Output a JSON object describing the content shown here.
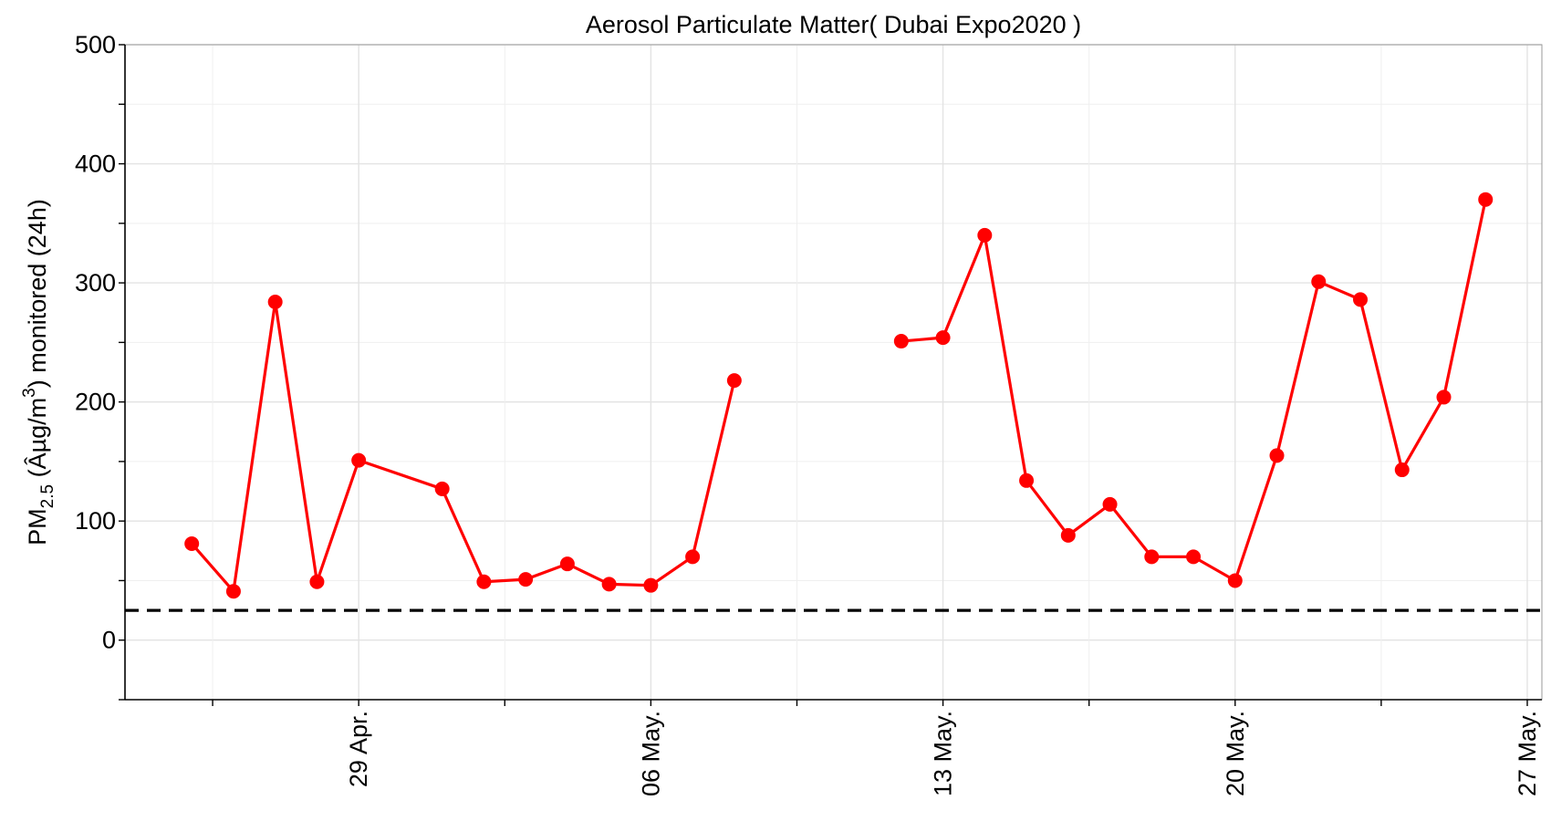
{
  "chart_data": {
    "type": "line",
    "title": "Aerosol Particulate Matter( Dubai Expo2020 )",
    "ylabel": {
      "prefix": "PM",
      "subscript": "2.5",
      "middle": " (Âµg/m",
      "superscript": "3",
      "suffix": ") monitored (24h)"
    },
    "xlabel": "",
    "ylim": [
      -50,
      500
    ],
    "xlim": [
      "2022-04-24",
      "2022-05-27"
    ],
    "y_ticks": [
      0,
      100,
      200,
      300,
      400,
      500
    ],
    "x_ticks": [
      {
        "date": "2022-04-29",
        "label": "29 Apr."
      },
      {
        "date": "2022-05-06",
        "label": "06 May."
      },
      {
        "date": "2022-05-13",
        "label": "13 May."
      },
      {
        "date": "2022-05-20",
        "label": "20 May."
      },
      {
        "date": "2022-05-27",
        "label": "27 May."
      }
    ],
    "grid": true,
    "reference_line": {
      "y": 25,
      "style": "dashed",
      "color": "#000000"
    },
    "series": [
      {
        "color": "#ff0000",
        "points": [
          {
            "x": "2022-04-25",
            "y": 81
          },
          {
            "x": "2022-04-26",
            "y": 41
          },
          {
            "x": "2022-04-27",
            "y": 284
          },
          {
            "x": "2022-04-28",
            "y": 49
          },
          {
            "x": "2022-04-29",
            "y": 151
          },
          {
            "x": "2022-05-01",
            "y": 127
          },
          {
            "x": "2022-05-02",
            "y": 49
          },
          {
            "x": "2022-05-03",
            "y": 51
          },
          {
            "x": "2022-05-04",
            "y": 64
          },
          {
            "x": "2022-05-05",
            "y": 47
          },
          {
            "x": "2022-05-06",
            "y": 46
          },
          {
            "x": "2022-05-07",
            "y": 70
          },
          {
            "x": "2022-05-08",
            "y": 218
          },
          {
            "x": "2022-05-09",
            "y": null
          },
          {
            "x": "2022-05-10",
            "y": null
          },
          {
            "x": "2022-05-11",
            "y": null
          },
          {
            "x": "2022-05-12",
            "y": 251
          },
          {
            "x": "2022-05-13",
            "y": 254
          },
          {
            "x": "2022-05-14",
            "y": 340
          },
          {
            "x": "2022-05-15",
            "y": 134
          },
          {
            "x": "2022-05-16",
            "y": 88
          },
          {
            "x": "2022-05-17",
            "y": 114
          },
          {
            "x": "2022-05-18",
            "y": 70
          },
          {
            "x": "2022-05-19",
            "y": 70
          },
          {
            "x": "2022-05-20",
            "y": 50
          },
          {
            "x": "2022-05-21",
            "y": 155
          },
          {
            "x": "2022-05-22",
            "y": 301
          },
          {
            "x": "2022-05-23",
            "y": 286
          },
          {
            "x": "2022-05-24",
            "y": 143
          },
          {
            "x": "2022-05-25",
            "y": 204
          },
          {
            "x": "2022-05-26",
            "y": 370
          }
        ]
      }
    ]
  }
}
